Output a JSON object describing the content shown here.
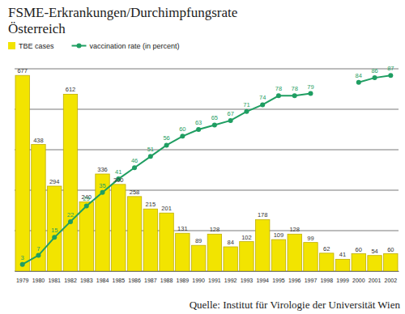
{
  "chart_data": {
    "type": "bar",
    "title": "FSME-Erkrankungen/Durchimpfungsrate",
    "subtitle": "Österreich",
    "annotations": [
      "Quelle: Institut für Virologie der Universität Wien"
    ],
    "categories": [
      "1979",
      "1980",
      "1981",
      "1982",
      "1983",
      "1984",
      "1985",
      "1986",
      "1987",
      "1988",
      "1989",
      "1990",
      "1991",
      "1992",
      "1993",
      "1994",
      "1995",
      "1996",
      "1997",
      "1998",
      "1999",
      "2000",
      "2001",
      "2002"
    ],
    "series": [
      {
        "name": "TBE cases",
        "type": "bar",
        "color": "#f2e400",
        "values": [
          677,
          438,
          294,
          612,
          240,
          336,
          300,
          258,
          215,
          201,
          131,
          89,
          128,
          84,
          102,
          178,
          109,
          128,
          99,
          62,
          41,
          60,
          54,
          60
        ]
      },
      {
        "name": "vaccination rate (in percent)",
        "type": "line",
        "axis": "y2",
        "color": "#1f9e62",
        "marker": "circle",
        "values": [
          3,
          7,
          15,
          22,
          29,
          35,
          41,
          46,
          51,
          56,
          60,
          63,
          65,
          67,
          71,
          74,
          78,
          78,
          79,
          null,
          null,
          84,
          86,
          87
        ]
      }
    ],
    "ylim": [
      0,
      700
    ],
    "yticks": [
      0,
      140,
      280,
      420,
      560,
      700
    ],
    "y2lim": [
      0,
      90
    ],
    "grid": true,
    "legend": "top-left",
    "data_labels": true,
    "tick_labels": "x"
  }
}
